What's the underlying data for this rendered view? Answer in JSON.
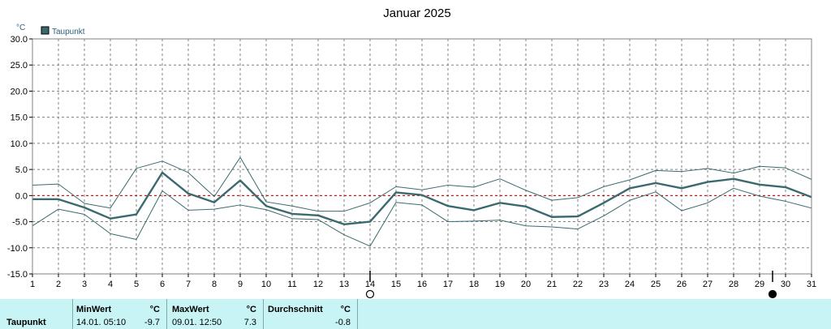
{
  "chart_data": {
    "type": "line",
    "title": "Januar 2025",
    "unit_label": "°C",
    "legend": [
      {
        "label": "Taupunkt",
        "color": "#3b6a6e"
      }
    ],
    "x": [
      1,
      2,
      3,
      4,
      5,
      6,
      7,
      8,
      9,
      10,
      11,
      12,
      13,
      14,
      15,
      16,
      17,
      18,
      19,
      20,
      21,
      22,
      23,
      24,
      25,
      26,
      27,
      28,
      29,
      30,
      31
    ],
    "xlim": [
      1,
      31
    ],
    "ylim": [
      -15,
      30
    ],
    "yticks": [
      30.0,
      25.0,
      20.0,
      15.0,
      10.0,
      5.0,
      0.0,
      -5.0,
      -10.0,
      -15.0
    ],
    "ytick_labels": [
      "30.0",
      "25.0",
      "20.0",
      "15.0",
      "10.0",
      "5.0",
      "0.0",
      "-5.0",
      "-10.0",
      "-15.0"
    ],
    "grid": true,
    "reference_line": {
      "y": 0,
      "color": "#cc0000"
    },
    "series": [
      {
        "name": "Taupunkt",
        "role": "mean",
        "color": "#3b6a6e",
        "values": [
          -0.7,
          -0.7,
          -2.3,
          -4.4,
          -3.6,
          4.4,
          0.4,
          -1.3,
          2.9,
          -2.0,
          -3.5,
          -3.8,
          -5.5,
          -5.0,
          0.6,
          0.1,
          -2.0,
          -2.8,
          -1.4,
          -2.1,
          -4.1,
          -4.0,
          -1.4,
          1.4,
          2.4,
          1.4,
          2.6,
          3.2,
          2.1,
          1.6,
          -0.3
        ]
      },
      {
        "role": "max",
        "color": "#3b6a6e",
        "values": [
          2.0,
          2.2,
          -1.5,
          -2.4,
          5.2,
          6.6,
          4.4,
          -0.2,
          7.3,
          -1.2,
          -2.0,
          -3.0,
          -3.0,
          -1.4,
          1.7,
          1.1,
          2.0,
          1.6,
          3.2,
          1.0,
          -0.9,
          -0.4,
          1.7,
          3.0,
          4.8,
          4.6,
          5.2,
          4.3,
          5.6,
          5.3,
          3.1
        ]
      },
      {
        "role": "min",
        "color": "#3b6a6e",
        "values": [
          -5.8,
          -2.6,
          -3.6,
          -7.3,
          -8.4,
          0.9,
          -2.8,
          -2.6,
          -1.8,
          -2.7,
          -4.4,
          -4.6,
          -7.5,
          -9.7,
          -1.3,
          -1.8,
          -5.0,
          -4.9,
          -4.7,
          -5.8,
          -6.0,
          -6.4,
          -3.9,
          -0.9,
          0.7,
          -2.9,
          -1.4,
          1.4,
          -0.1,
          -1.1,
          -2.4
        ]
      }
    ],
    "moon_phases": [
      {
        "day": 14,
        "symbol": "full-moon-icon"
      },
      {
        "day": 29.5,
        "symbol": "new-moon-icon"
      }
    ]
  },
  "stats": {
    "row_label": "Taupunkt",
    "min": {
      "header": "MinWert",
      "unit": "°C",
      "when": "14.01.  05:10",
      "value": "-9.7"
    },
    "max": {
      "header": "MaxWert",
      "unit": "°C",
      "when": "09.01.  12:50",
      "value": "7.3"
    },
    "avg": {
      "header": "Durchschnitt",
      "unit": "°C",
      "value": "-0.8"
    }
  }
}
